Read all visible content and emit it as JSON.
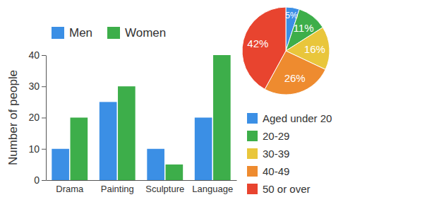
{
  "chart_data": [
    {
      "type": "bar",
      "ylabel": "Number of people",
      "categories": [
        "Drama",
        "Painting",
        "Sculpture",
        "Language"
      ],
      "series": [
        {
          "name": "Men",
          "color": "#3b8fe5",
          "values": [
            10,
            25,
            10,
            20
          ]
        },
        {
          "name": "Women",
          "color": "#3dae4a",
          "values": [
            20,
            30,
            5,
            40
          ]
        }
      ],
      "ylim": [
        0,
        40
      ],
      "yticks": [
        0,
        10,
        20,
        30,
        40
      ],
      "grid": false,
      "legend": "top"
    },
    {
      "type": "pie",
      "categories": [
        "Aged under 20",
        "20-29",
        "30-39",
        "40-49",
        "50 or over"
      ],
      "values": [
        5,
        11,
        16,
        26,
        42
      ],
      "value_labels": [
        "5%",
        "11%",
        "16%",
        "26%",
        "42%"
      ],
      "colors": [
        "#3b8fe5",
        "#3dae4a",
        "#e9c63b",
        "#ee8b2f",
        "#e8442f"
      ],
      "data_labels": true,
      "legend": "bottom"
    }
  ]
}
